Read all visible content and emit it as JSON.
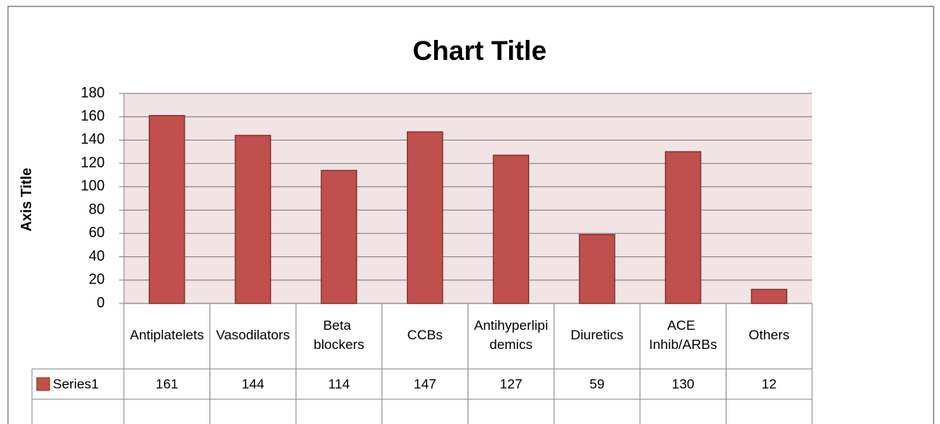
{
  "chart_data": {
    "type": "bar",
    "title": "Chart Title",
    "y_axis_title": "Axis Title",
    "categories": [
      "Antiplatelets",
      "Vasodilators",
      "Beta blockers",
      "CCBs",
      "Antihyperlipidemics",
      "Diuretics",
      "ACE Inhib/ARBs",
      "Others"
    ],
    "series": [
      {
        "name": "Series1",
        "color": "#c0504d",
        "values": [
          161,
          144,
          114,
          147,
          127,
          59,
          130,
          12
        ]
      }
    ],
    "ylim": [
      0,
      180
    ],
    "yticks": [
      0,
      20,
      40,
      60,
      80,
      100,
      120,
      140,
      160,
      180
    ],
    "grid": true
  }
}
